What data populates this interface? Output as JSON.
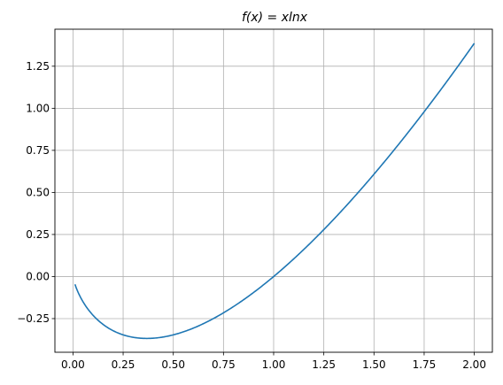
{
  "chart_data": {
    "type": "line",
    "title_parts": [
      "f(x) = x",
      "ln",
      "x"
    ],
    "function": "x*ln(x)",
    "x": [
      0.01,
      0.05,
      0.1,
      0.15,
      0.2,
      0.25,
      0.3,
      0.35,
      0.368,
      0.4,
      0.5,
      0.6,
      0.7,
      0.8,
      0.9,
      1.0,
      1.1,
      1.2,
      1.3,
      1.4,
      1.5,
      1.6,
      1.7,
      1.8,
      1.9,
      2.0
    ],
    "y": [
      -0.046,
      -0.15,
      -0.23,
      -0.285,
      -0.322,
      -0.347,
      -0.361,
      -0.367,
      -0.368,
      -0.367,
      -0.347,
      -0.306,
      -0.25,
      -0.179,
      -0.095,
      0.0,
      0.105,
      0.219,
      0.341,
      0.471,
      0.608,
      0.752,
      0.902,
      1.058,
      1.219,
      1.386
    ],
    "xlim": [
      -0.09,
      2.09
    ],
    "ylim": [
      -0.45,
      1.47
    ],
    "xticks": [
      0.0,
      0.25,
      0.5,
      0.75,
      1.0,
      1.25,
      1.5,
      1.75,
      2.0
    ],
    "xtick_labels": [
      "0.00",
      "0.25",
      "0.50",
      "0.75",
      "1.00",
      "1.25",
      "1.50",
      "1.75",
      "2.00"
    ],
    "yticks": [
      -0.25,
      0.0,
      0.25,
      0.5,
      0.75,
      1.0,
      1.25
    ],
    "ytick_labels": [
      "−0.25",
      "0.00",
      "0.25",
      "0.50",
      "0.75",
      "1.00",
      "1.25"
    ],
    "grid": true,
    "line_color": "#1f77b4",
    "grid_color": "#b0b0b0"
  }
}
